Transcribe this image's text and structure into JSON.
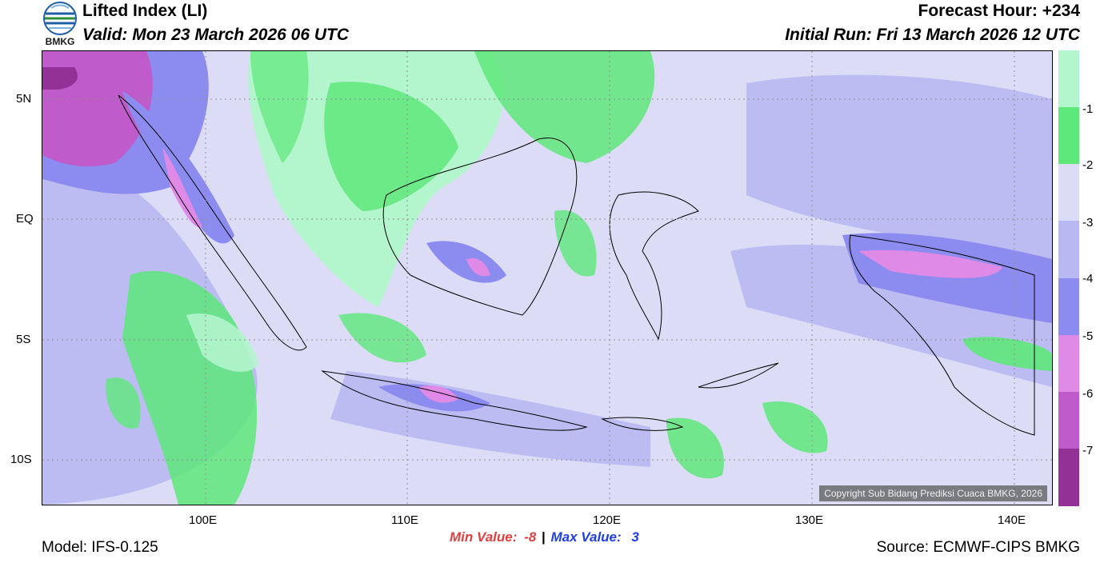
{
  "header": {
    "logo_text": "BMKG",
    "title": "Lifted Index (LI)",
    "valid": "Valid: Mon 23 March 2026 06 UTC",
    "forecast_hour": "Forecast Hour: +234",
    "initial_run": "Initial Run: Fri 13 March 2026 12 UTC"
  },
  "map": {
    "lat_labels": [
      "5N",
      "EQ",
      "5S",
      "10S"
    ],
    "lon_labels": [
      "100E",
      "110E",
      "120E",
      "130E",
      "140E"
    ],
    "copyright": "Copyright Sub Bidang Prediksi Cuaca BMKG, 2026"
  },
  "legend": {
    "labels": [
      "-1",
      "-2",
      "-3",
      "-4",
      "-5",
      "-6",
      "-7"
    ],
    "colors": [
      "#b3f5cc",
      "#5ee87a",
      "#dcdcf7",
      "#b8b8f2",
      "#8c8cf0",
      "#e08ae8",
      "#c05bcc",
      "#923296"
    ]
  },
  "footer": {
    "model": "Model: IFS-0.125",
    "min_label": "Min Value:",
    "min_value": "-8",
    "separator": "|",
    "max_label": "Max Value:",
    "max_value": "3",
    "source": "Source: ECMWF-CIPS BMKG"
  }
}
